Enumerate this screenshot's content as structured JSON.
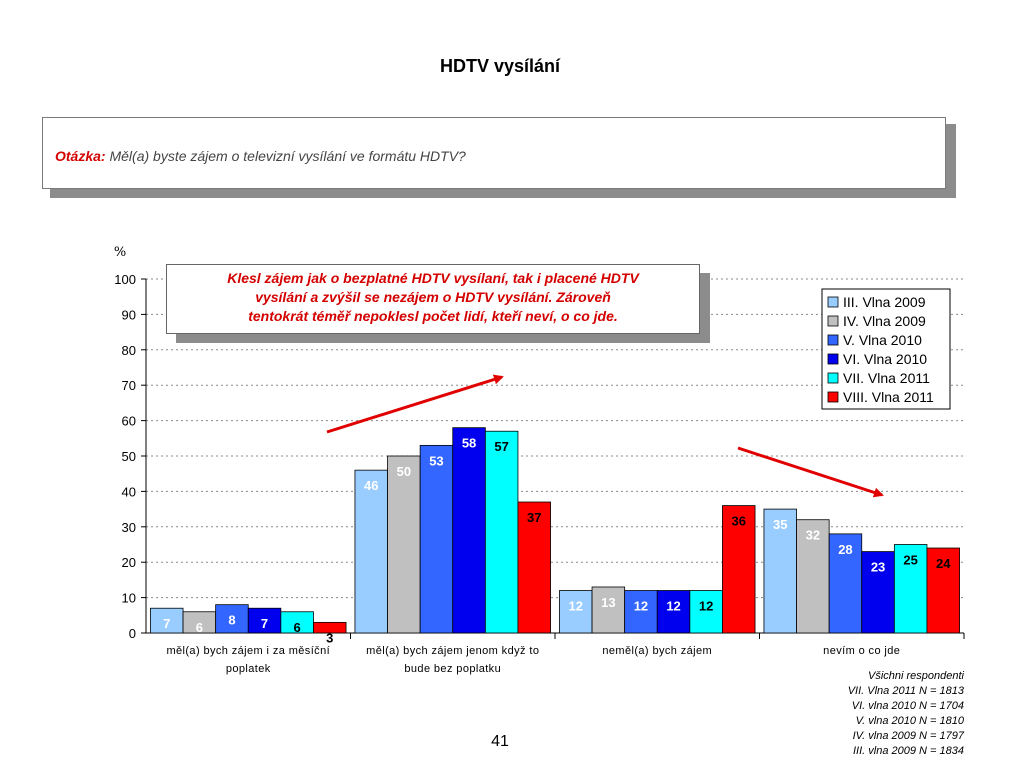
{
  "page": {
    "title": "HDTV vysílání",
    "page_number": "41"
  },
  "question": {
    "label": "Otázka:",
    "text": "Měl(a) byste zájem o televizní vysílání ve formátu HDTV?"
  },
  "annotation": {
    "text": "Klesl zájem jak o bezplatné HDTV vysílaní, tak i placené HDTV\nvysílání  a zvýšil se nezájem o HDTV vysílání. Zároveň\ntentokrát téměř nepoklesl počet lidí, kteří neví, o co jde."
  },
  "footnote": {
    "lines": [
      "Všichni respondenti",
      "VII. Vlna  2011 N = 1813",
      "VI. vlna 2010 N = 1704",
      "V. vlna 2010 N = 1810",
      "IV. vlna 2009 N = 1797",
      "III. vlna 2009 N = 1834"
    ]
  },
  "chart_data": {
    "type": "bar",
    "ylabel": "%",
    "ylim": [
      0,
      100
    ],
    "yticks": [
      0,
      10,
      20,
      30,
      40,
      50,
      60,
      70,
      80,
      90,
      100
    ],
    "grid": true,
    "legend_position": "top-right",
    "categories": [
      "měl(a) bych zájem  i za měsíční poplatek",
      "měl(a) bych zájem jenom když to bude bez poplatku",
      "neměl(a) bych zájem",
      "nevím o co jde"
    ],
    "category_label_lines": [
      [
        "měl(a) bych zájem  i za měsíční",
        "poplatek"
      ],
      [
        "měl(a) bych zájem jenom když to",
        "bude bez poplatku"
      ],
      [
        "neměl(a) bych zájem"
      ],
      [
        "nevím o co jde"
      ]
    ],
    "series": [
      {
        "name": "III. Vlna 2009",
        "color": "#99ccff",
        "label_color": "#ffffff",
        "values": [
          7,
          46,
          12,
          35
        ],
        "shown": [
          7,
          46,
          12,
          35
        ]
      },
      {
        "name": "IV. Vlna 2009",
        "color": "#c0c0c0",
        "label_color": "#ffffff",
        "values": [
          6,
          50,
          13,
          32
        ],
        "shown": [
          6,
          50,
          13,
          32
        ]
      },
      {
        "name": "V. Vlna 2010",
        "color": "#3366ff",
        "label_color": "#ffffff",
        "values": [
          8,
          53,
          12,
          28
        ],
        "shown": [
          8,
          53,
          12,
          28
        ]
      },
      {
        "name": "VI. Vlna 2010",
        "color": "#0000ee",
        "label_color": "#ffffff",
        "values": [
          7,
          58,
          12,
          23
        ],
        "shown": [
          7,
          58,
          12,
          23
        ]
      },
      {
        "name": "VII. Vlna 2011",
        "color": "#00ffff",
        "label_color": "#000000",
        "values": [
          6,
          57,
          12,
          25
        ],
        "shown": [
          6,
          57,
          12,
          25
        ]
      },
      {
        "name": "VIII. Vlna 2011",
        "color": "#ff0000",
        "label_color": "#000000",
        "values": [
          3,
          37,
          36,
          24
        ],
        "shown": [
          3,
          37,
          36,
          24
        ]
      }
    ],
    "arrow_color": "#e00000"
  }
}
